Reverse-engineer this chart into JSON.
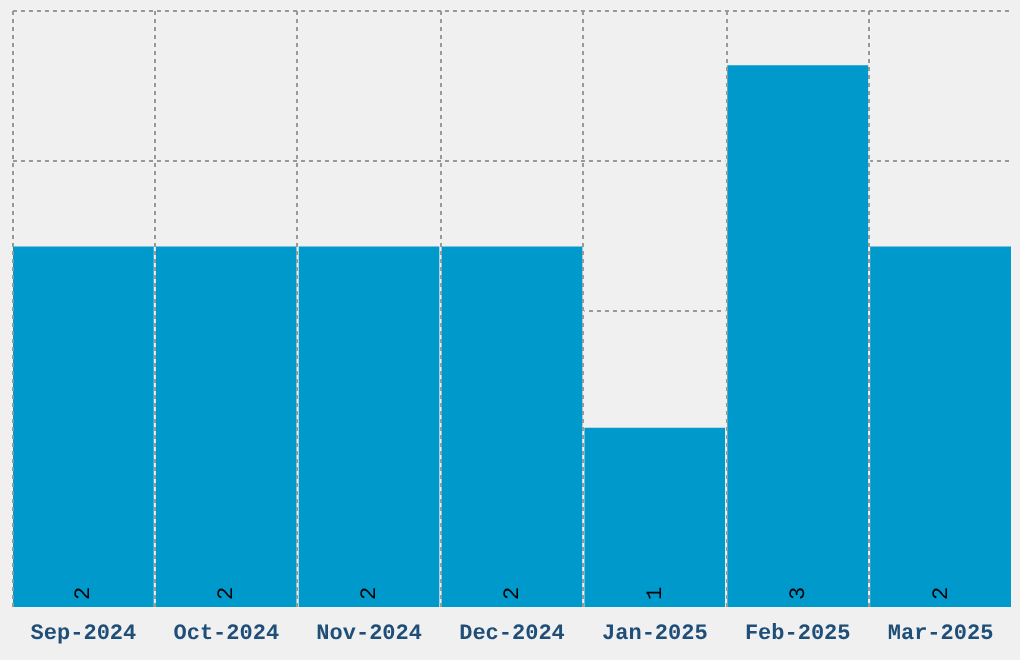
{
  "chart_data": {
    "type": "bar",
    "categories": [
      "Sep-2024",
      "Oct-2024",
      "Nov-2024",
      "Dec-2024",
      "Jan-2025",
      "Feb-2025",
      "Mar-2025"
    ],
    "values": [
      2,
      2,
      2,
      2,
      1,
      3,
      2
    ],
    "color": "#0099cc",
    "ylim": [
      0,
      3.3
    ],
    "grid": true,
    "tick_labels": "x",
    "data_labels": true
  }
}
